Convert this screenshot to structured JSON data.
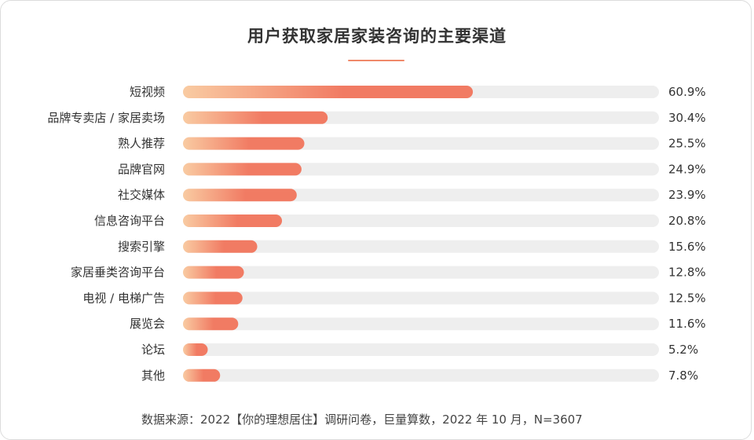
{
  "chart_data": {
    "type": "bar",
    "orientation": "horizontal",
    "title": "用户获取家居家装咨询的主要渠道",
    "categories": [
      "短视频",
      "品牌专卖店 / 家居卖场",
      "熟人推荐",
      "品牌官网",
      "社交媒体",
      "信息咨询平台",
      "搜索引擎",
      "家居垂类咨询平台",
      "电视 / 电梯广告",
      "展览会",
      "论坛",
      "其他"
    ],
    "values": [
      60.9,
      30.4,
      25.5,
      24.9,
      23.9,
      20.8,
      15.6,
      12.8,
      12.5,
      11.6,
      5.2,
      7.8
    ],
    "value_labels": [
      "60.9%",
      "30.4%",
      "25.5%",
      "24.9%",
      "23.9%",
      "20.8%",
      "15.6%",
      "12.8%",
      "12.5%",
      "11.6%",
      "5.2%",
      "7.8%"
    ],
    "xlim": [
      0,
      100
    ],
    "unit": "%",
    "source": "数据来源：2022【你的理想居住】调研问卷，巨量算数，2022 年 10 月，N=3607"
  },
  "colors": {
    "bar_start": "#f9cba2",
    "bar_end": "#f17b63",
    "track": "#eeeeee",
    "accent": "#f0896a"
  }
}
